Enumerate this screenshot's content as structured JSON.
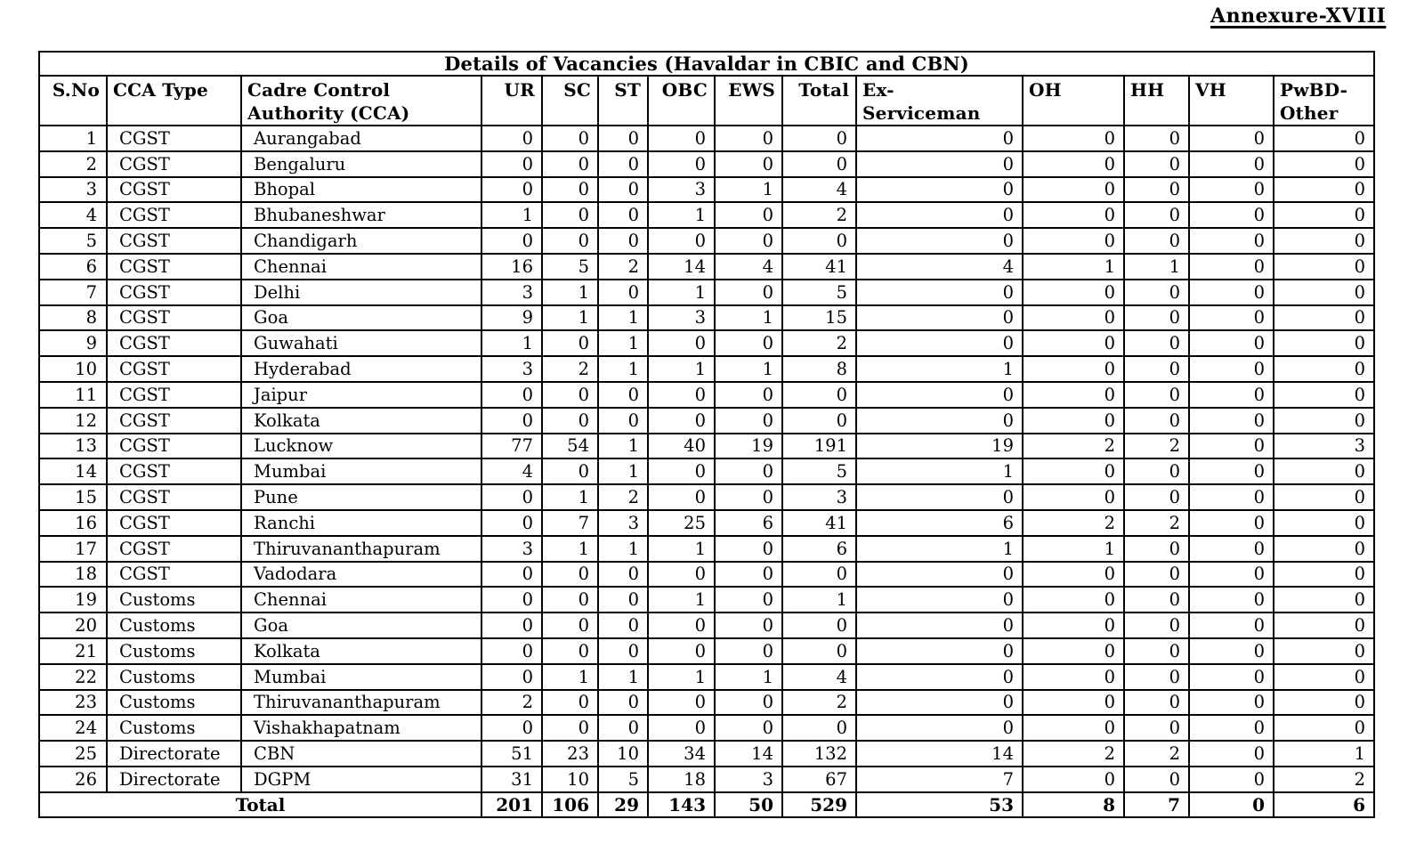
{
  "annexure_label": "Annexure-XVIII",
  "table": {
    "title": "Details of Vacancies (Havaldar in CBIC and CBN)",
    "columns": [
      "S.No",
      "CCA Type",
      "Cadre Control\nAuthority (CCA)",
      "UR",
      "SC",
      "ST",
      "OBC",
      "EWS",
      "Total",
      "Ex-\nServiceman",
      "OH",
      "HH",
      "VH",
      "PwBD-\nOther"
    ],
    "value_column_names": [
      "UR",
      "SC",
      "ST",
      "OBC",
      "EWS",
      "Total",
      "Ex-Serviceman",
      "OH",
      "HH",
      "VH",
      "PwBD-Other"
    ],
    "rows": [
      {
        "sno": "1",
        "cca_type": "CGST",
        "cca": "Aurangabad",
        "values": [
          0,
          0,
          0,
          0,
          0,
          0,
          0,
          0,
          0,
          0,
          0
        ]
      },
      {
        "sno": "2",
        "cca_type": "CGST",
        "cca": "Bengaluru",
        "values": [
          0,
          0,
          0,
          0,
          0,
          0,
          0,
          0,
          0,
          0,
          0
        ]
      },
      {
        "sno": "3",
        "cca_type": "CGST",
        "cca": "Bhopal",
        "values": [
          0,
          0,
          0,
          3,
          1,
          4,
          0,
          0,
          0,
          0,
          0
        ]
      },
      {
        "sno": "4",
        "cca_type": "CGST",
        "cca": "Bhubaneshwar",
        "values": [
          1,
          0,
          0,
          1,
          0,
          2,
          0,
          0,
          0,
          0,
          0
        ]
      },
      {
        "sno": "5",
        "cca_type": "CGST",
        "cca": "Chandigarh",
        "values": [
          0,
          0,
          0,
          0,
          0,
          0,
          0,
          0,
          0,
          0,
          0
        ]
      },
      {
        "sno": "6",
        "cca_type": "CGST",
        "cca": "Chennai",
        "values": [
          16,
          5,
          2,
          14,
          4,
          41,
          4,
          1,
          1,
          0,
          0
        ]
      },
      {
        "sno": "7",
        "cca_type": "CGST",
        "cca": "Delhi",
        "values": [
          3,
          1,
          0,
          1,
          0,
          5,
          0,
          0,
          0,
          0,
          0
        ]
      },
      {
        "sno": "8",
        "cca_type": "CGST",
        "cca": "Goa",
        "values": [
          9,
          1,
          1,
          3,
          1,
          15,
          0,
          0,
          0,
          0,
          0
        ]
      },
      {
        "sno": "9",
        "cca_type": "CGST",
        "cca": "Guwahati",
        "values": [
          1,
          0,
          1,
          0,
          0,
          2,
          0,
          0,
          0,
          0,
          0
        ]
      },
      {
        "sno": "10",
        "cca_type": "CGST",
        "cca": "Hyderabad",
        "values": [
          3,
          2,
          1,
          1,
          1,
          8,
          1,
          0,
          0,
          0,
          0
        ]
      },
      {
        "sno": "11",
        "cca_type": "CGST",
        "cca": "Jaipur",
        "values": [
          0,
          0,
          0,
          0,
          0,
          0,
          0,
          0,
          0,
          0,
          0
        ]
      },
      {
        "sno": "12",
        "cca_type": "CGST",
        "cca": "Kolkata",
        "values": [
          0,
          0,
          0,
          0,
          0,
          0,
          0,
          0,
          0,
          0,
          0
        ]
      },
      {
        "sno": "13",
        "cca_type": "CGST",
        "cca": "Lucknow",
        "values": [
          77,
          54,
          1,
          40,
          19,
          191,
          19,
          2,
          2,
          0,
          3
        ]
      },
      {
        "sno": "14",
        "cca_type": "CGST",
        "cca": "Mumbai",
        "values": [
          4,
          0,
          1,
          0,
          0,
          5,
          1,
          0,
          0,
          0,
          0
        ]
      },
      {
        "sno": "15",
        "cca_type": "CGST",
        "cca": "Pune",
        "values": [
          0,
          1,
          2,
          0,
          0,
          3,
          0,
          0,
          0,
          0,
          0
        ]
      },
      {
        "sno": "16",
        "cca_type": "CGST",
        "cca": "Ranchi",
        "values": [
          0,
          7,
          3,
          25,
          6,
          41,
          6,
          2,
          2,
          0,
          0
        ]
      },
      {
        "sno": "17",
        "cca_type": "CGST",
        "cca": "Thiruvananthapuram",
        "values": [
          3,
          1,
          1,
          1,
          0,
          6,
          1,
          1,
          0,
          0,
          0
        ]
      },
      {
        "sno": "18",
        "cca_type": "CGST",
        "cca": "Vadodara",
        "values": [
          0,
          0,
          0,
          0,
          0,
          0,
          0,
          0,
          0,
          0,
          0
        ]
      },
      {
        "sno": "19",
        "cca_type": "Customs",
        "cca": "Chennai",
        "values": [
          0,
          0,
          0,
          1,
          0,
          1,
          0,
          0,
          0,
          0,
          0
        ]
      },
      {
        "sno": "20",
        "cca_type": "Customs",
        "cca": "Goa",
        "values": [
          0,
          0,
          0,
          0,
          0,
          0,
          0,
          0,
          0,
          0,
          0
        ]
      },
      {
        "sno": "21",
        "cca_type": "Customs",
        "cca": "Kolkata",
        "values": [
          0,
          0,
          0,
          0,
          0,
          0,
          0,
          0,
          0,
          0,
          0
        ]
      },
      {
        "sno": "22",
        "cca_type": "Customs",
        "cca": "Mumbai",
        "values": [
          0,
          1,
          1,
          1,
          1,
          4,
          0,
          0,
          0,
          0,
          0
        ]
      },
      {
        "sno": "23",
        "cca_type": "Customs",
        "cca": "Thiruvananthapuram",
        "values": [
          2,
          0,
          0,
          0,
          0,
          2,
          0,
          0,
          0,
          0,
          0
        ]
      },
      {
        "sno": "24",
        "cca_type": "Customs",
        "cca": "Vishakhapatnam",
        "values": [
          0,
          0,
          0,
          0,
          0,
          0,
          0,
          0,
          0,
          0,
          0
        ]
      },
      {
        "sno": "25",
        "cca_type": "Directorate",
        "cca": "CBN",
        "values": [
          51,
          23,
          10,
          34,
          14,
          132,
          14,
          2,
          2,
          0,
          1
        ]
      },
      {
        "sno": "26",
        "cca_type": "Directorate",
        "cca": "DGPM",
        "values": [
          31,
          10,
          5,
          18,
          3,
          67,
          7,
          0,
          0,
          0,
          2
        ]
      }
    ],
    "total_row": {
      "label": "Total",
      "values": [
        201,
        106,
        29,
        143,
        50,
        529,
        53,
        8,
        7,
        0,
        6
      ]
    }
  }
}
